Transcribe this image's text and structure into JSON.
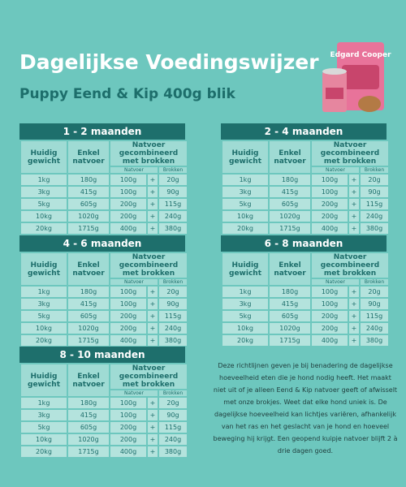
{
  "header": {
    "title": "Dagelijkse Voedingswijzer",
    "subtitle": "Puppy Eend & Kip 400g blik"
  },
  "product": {
    "brand": "Edgard Cooper"
  },
  "tables": [
    {
      "title": "1 - 2 maanden",
      "columns": [
        "Huidig gewicht",
        "Enkel natvoer",
        "Natvoer gecombineerd met brokken"
      ],
      "subcolumns": [
        "Natvoer",
        "Brokken"
      ],
      "rows": [
        [
          "1kg",
          "180g",
          "100g",
          "+",
          "20g"
        ],
        [
          "3kg",
          "415g",
          "100g",
          "+",
          "90g"
        ],
        [
          "5kg",
          "605g",
          "200g",
          "+",
          "115g"
        ],
        [
          "10kg",
          "1020g",
          "200g",
          "+",
          "240g"
        ],
        [
          "20kg",
          "1715g",
          "400g",
          "+",
          "380g"
        ]
      ]
    },
    {
      "title": "2 - 4 maanden",
      "columns": [
        "Huidig gewicht",
        "Enkel natvoer",
        "Natvoer gecombineerd met brokken"
      ],
      "subcolumns": [
        "Natvoer",
        "Brokken"
      ],
      "rows": [
        [
          "1kg",
          "180g",
          "100g",
          "+",
          "20g"
        ],
        [
          "3kg",
          "415g",
          "100g",
          "+",
          "90g"
        ],
        [
          "5kg",
          "605g",
          "200g",
          "+",
          "115g"
        ],
        [
          "10kg",
          "1020g",
          "200g",
          "+",
          "240g"
        ],
        [
          "20kg",
          "1715g",
          "400g",
          "+",
          "380g"
        ]
      ]
    },
    {
      "title": "4 - 6 maanden",
      "columns": [
        "Huidig gewicht",
        "Enkel natvoer",
        "Natvoer gecombineerd met brokken"
      ],
      "subcolumns": [
        "Natvoer",
        "Brokken"
      ],
      "rows": [
        [
          "1kg",
          "180g",
          "100g",
          "+",
          "20g"
        ],
        [
          "3kg",
          "415g",
          "100g",
          "+",
          "90g"
        ],
        [
          "5kg",
          "605g",
          "200g",
          "+",
          "115g"
        ],
        [
          "10kg",
          "1020g",
          "200g",
          "+",
          "240g"
        ],
        [
          "20kg",
          "1715g",
          "400g",
          "+",
          "380g"
        ]
      ]
    },
    {
      "title": "6 - 8 maanden",
      "columns": [
        "Huidig gewicht",
        "Enkel natvoer",
        "Natvoer gecombineerd met brokken"
      ],
      "subcolumns": [
        "Natvoer",
        "Brokken"
      ],
      "rows": [
        [
          "1kg",
          "180g",
          "100g",
          "+",
          "20g"
        ],
        [
          "3kg",
          "415g",
          "100g",
          "+",
          "90g"
        ],
        [
          "5kg",
          "605g",
          "200g",
          "+",
          "115g"
        ],
        [
          "10kg",
          "1020g",
          "200g",
          "+",
          "240g"
        ],
        [
          "20kg",
          "1715g",
          "400g",
          "+",
          "380g"
        ]
      ]
    },
    {
      "title": "8 - 10 maanden",
      "columns": [
        "Huidig gewicht",
        "Enkel natvoer",
        "Natvoer gecombineerd met brokken"
      ],
      "subcolumns": [
        "Natvoer",
        "Brokken"
      ],
      "rows": [
        [
          "1kg",
          "180g",
          "100g",
          "+",
          "20g"
        ],
        [
          "3kg",
          "415g",
          "100g",
          "+",
          "90g"
        ],
        [
          "5kg",
          "605g",
          "200g",
          "+",
          "115g"
        ],
        [
          "10kg",
          "1020g",
          "200g",
          "+",
          "240g"
        ],
        [
          "20kg",
          "1715g",
          "400g",
          "+",
          "380g"
        ]
      ]
    }
  ],
  "note": "Deze richtlijnen geven je bij benadering de dagelijkse hoeveelheid eten die je hond nodig heeft. Het maakt niet uit of je alleen Eend & Kip natvoer geeft of afwisselt met onze brokjes. Weet dat elke hond uniek is. De dagelijkse hoeveelheid kan lichtjes variëren, afhankelijk van het ras en het geslacht van je hond en hoeveel beweging hij krijgt. Een geopend kuipje natvoer blijft 2 à drie dagen goed."
}
